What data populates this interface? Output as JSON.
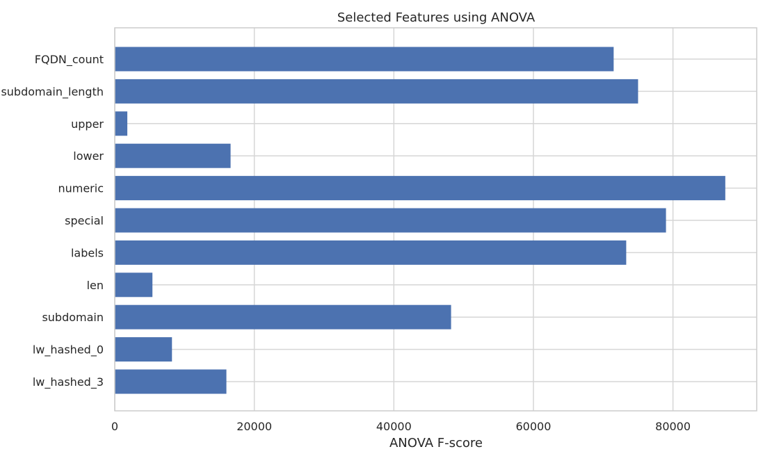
{
  "chart_data": {
    "type": "bar",
    "orientation": "horizontal",
    "title": "Selected Features using ANOVA",
    "xlabel": "ANOVA F-score",
    "ylabel": "",
    "categories": [
      "FQDN_count",
      "subdomain_length",
      "upper",
      "lower",
      "numeric",
      "special",
      "labels",
      "len",
      "subdomain",
      "lw_hashed_0",
      "lw_hashed_3"
    ],
    "values": [
      71500,
      75000,
      1800,
      16600,
      87500,
      79000,
      73300,
      5400,
      48200,
      8200,
      16000
    ],
    "xlim": [
      0,
      92000
    ],
    "xticks": [
      0,
      20000,
      40000,
      60000,
      80000
    ],
    "xtick_labels": [
      "0",
      "20000",
      "40000",
      "60000",
      "80000"
    ],
    "grid": true,
    "bar_color": "#4c72b0"
  }
}
